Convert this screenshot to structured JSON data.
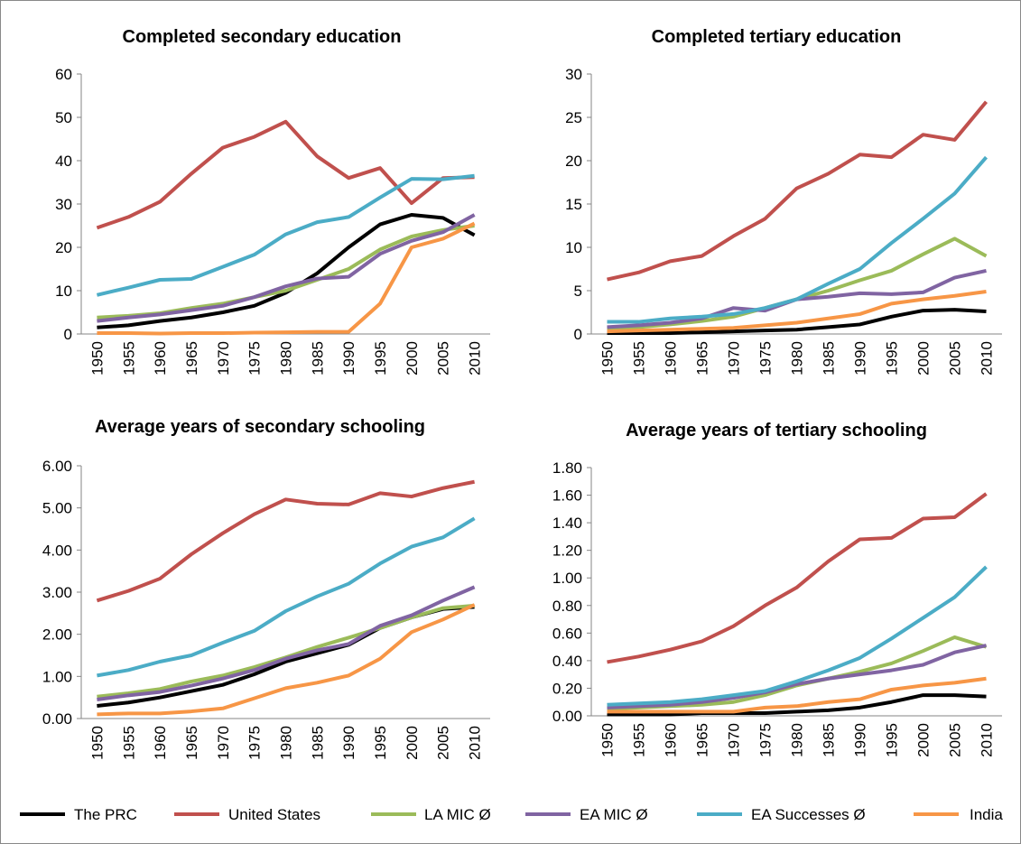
{
  "chart_data": [
    {
      "type": "line",
      "title": "Completed secondary education",
      "categories": [
        1950,
        1955,
        1960,
        1965,
        1970,
        1975,
        1980,
        1985,
        1990,
        1995,
        2000,
        2005,
        2010
      ],
      "ylim": [
        0,
        60
      ],
      "yticks": [
        0,
        10,
        20,
        30,
        40,
        50,
        60
      ],
      "series": [
        {
          "name": "The PRC",
          "color": "#000000",
          "values": [
            1.5,
            2,
            3,
            3.8,
            5,
            6.5,
            9.5,
            14,
            20,
            25.3,
            27.5,
            26.8,
            22.8
          ]
        },
        {
          "name": "United States",
          "color": "#c0504d",
          "values": [
            24.5,
            27,
            30.5,
            37,
            43,
            45.5,
            49,
            41,
            36,
            38.3,
            30.2,
            36,
            36.2
          ]
        },
        {
          "name": "LA MIC Ø",
          "color": "#9bbb59",
          "values": [
            3.8,
            4.2,
            4.8,
            6,
            7,
            8.5,
            10,
            12.5,
            15,
            19.5,
            22.5,
            24,
            25
          ]
        },
        {
          "name": "EA MIC Ø",
          "color": "#8064a2",
          "values": [
            3,
            3.8,
            4.5,
            5.5,
            6.5,
            8.5,
            11,
            12.8,
            13.2,
            18.5,
            21.5,
            23.5,
            27.5
          ]
        },
        {
          "name": "EA Successes Ø",
          "color": "#4bacc6",
          "values": [
            9,
            10.7,
            12.5,
            12.7,
            15.5,
            18.3,
            23,
            25.8,
            27,
            31.5,
            35.8,
            35.7,
            36.5
          ]
        },
        {
          "name": "India",
          "color": "#f79646",
          "values": [
            0.2,
            0.2,
            0.1,
            0.2,
            0.2,
            0.3,
            0.4,
            0.5,
            0.5,
            7,
            20,
            22,
            25.5
          ]
        }
      ]
    },
    {
      "type": "line",
      "title": "Completed tertiary education",
      "categories": [
        1950,
        1955,
        1960,
        1965,
        1970,
        1975,
        1980,
        1985,
        1990,
        1995,
        2000,
        2005,
        2010
      ],
      "ylim": [
        0,
        30
      ],
      "yticks": [
        0,
        5,
        10,
        15,
        20,
        25,
        30
      ],
      "series": [
        {
          "color": "#000000",
          "values": [
            0.1,
            0.1,
            0.1,
            0.2,
            0.3,
            0.4,
            0.5,
            0.8,
            1.1,
            2,
            2.7,
            2.8,
            2.6
          ]
        },
        {
          "color": "#c0504d",
          "values": [
            6.3,
            7.1,
            8.4,
            9,
            11.3,
            13.3,
            16.8,
            18.5,
            20.7,
            20.4,
            23,
            22.4,
            26.8
          ]
        },
        {
          "color": "#9bbb59",
          "values": [
            0.6,
            0.8,
            1.1,
            1.5,
            2,
            3,
            4,
            5,
            6.2,
            7.3,
            9.2,
            11,
            9
          ]
        },
        {
          "color": "#8064a2",
          "values": [
            0.8,
            1,
            1.3,
            1.8,
            3,
            2.7,
            4,
            4.3,
            4.7,
            4.6,
            4.8,
            6.5,
            7.3
          ]
        },
        {
          "color": "#4bacc6",
          "values": [
            1.4,
            1.4,
            1.8,
            2,
            2.3,
            3,
            4,
            5.8,
            7.5,
            10.5,
            13.3,
            16.2,
            20.4
          ]
        },
        {
          "color": "#f79646",
          "values": [
            0.3,
            0.4,
            0.5,
            0.6,
            0.7,
            1,
            1.3,
            1.8,
            2.3,
            3.5,
            4,
            4.4,
            4.9
          ]
        }
      ]
    },
    {
      "type": "line",
      "title": "Average years of secondary schooling",
      "categories": [
        1950,
        1955,
        1960,
        1965,
        1970,
        1975,
        1980,
        1985,
        1990,
        1995,
        2000,
        2005,
        2010
      ],
      "ylim": [
        0,
        6
      ],
      "yticks": [
        {
          "value": 0,
          "label": "0.00"
        },
        {
          "value": 1,
          "label": "1.00"
        },
        {
          "value": 2,
          "label": "2.00"
        },
        {
          "value": 3,
          "label": "3.00"
        },
        {
          "value": 4,
          "label": "4.00"
        },
        {
          "value": 5,
          "label": "5.00"
        },
        {
          "value": 6,
          "label": "6.00"
        }
      ],
      "series": [
        {
          "color": "#000000",
          "values": [
            0.3,
            0.38,
            0.5,
            0.65,
            0.8,
            1.05,
            1.35,
            1.55,
            1.75,
            2.15,
            2.4,
            2.6,
            2.65
          ]
        },
        {
          "color": "#c0504d",
          "values": [
            2.8,
            3.03,
            3.32,
            3.9,
            4.4,
            4.85,
            5.2,
            5.1,
            5.08,
            5.35,
            5.27,
            5.47,
            5.62
          ]
        },
        {
          "color": "#9bbb59",
          "values": [
            0.52,
            0.6,
            0.7,
            0.88,
            1.02,
            1.22,
            1.45,
            1.7,
            1.92,
            2.15,
            2.4,
            2.62,
            2.68
          ]
        },
        {
          "color": "#8064a2",
          "values": [
            0.45,
            0.55,
            0.63,
            0.78,
            0.95,
            1.15,
            1.42,
            1.62,
            1.77,
            2.2,
            2.45,
            2.8,
            3.12
          ]
        },
        {
          "color": "#4bacc6",
          "values": [
            1.02,
            1.15,
            1.35,
            1.5,
            1.8,
            2.08,
            2.55,
            2.9,
            3.2,
            3.68,
            4.08,
            4.3,
            4.75
          ]
        },
        {
          "color": "#f79646",
          "values": [
            0.1,
            0.12,
            0.12,
            0.17,
            0.24,
            0.48,
            0.72,
            0.85,
            1.02,
            1.42,
            2.05,
            2.35,
            2.7
          ]
        }
      ]
    },
    {
      "type": "line",
      "title": "Average years of tertiary schooling",
      "categories": [
        1950,
        1955,
        1960,
        1965,
        1970,
        1975,
        1980,
        1985,
        1990,
        1995,
        2000,
        2005,
        2010
      ],
      "ylim": [
        0,
        1.8
      ],
      "yticks": [
        {
          "value": 0,
          "label": "0.00"
        },
        {
          "value": 0.2,
          "label": "0.20"
        },
        {
          "value": 0.4,
          "label": "0.40"
        },
        {
          "value": 0.6,
          "label": "0.60"
        },
        {
          "value": 0.8,
          "label": "0.80"
        },
        {
          "value": 1,
          "label": "1.00"
        },
        {
          "value": 1.2,
          "label": "1.20"
        },
        {
          "value": 1.4,
          "label": "1.40"
        },
        {
          "value": 1.6,
          "label": "1.60"
        },
        {
          "value": 1.8,
          "label": "1.80"
        }
      ],
      "series": [
        {
          "color": "#000000",
          "values": [
            0.01,
            0.01,
            0.01,
            0.02,
            0.02,
            0.02,
            0.03,
            0.04,
            0.06,
            0.1,
            0.15,
            0.15,
            0.14
          ]
        },
        {
          "color": "#c0504d",
          "values": [
            0.39,
            0.43,
            0.48,
            0.54,
            0.65,
            0.8,
            0.93,
            1.12,
            1.28,
            1.29,
            1.43,
            1.44,
            1.61
          ]
        },
        {
          "color": "#9bbb59",
          "values": [
            0.05,
            0.06,
            0.07,
            0.08,
            0.1,
            0.15,
            0.22,
            0.27,
            0.32,
            0.38,
            0.47,
            0.57,
            0.5
          ]
        },
        {
          "color": "#8064a2",
          "values": [
            0.06,
            0.07,
            0.08,
            0.1,
            0.13,
            0.17,
            0.23,
            0.27,
            0.3,
            0.33,
            0.37,
            0.46,
            0.51
          ]
        },
        {
          "color": "#4bacc6",
          "values": [
            0.08,
            0.09,
            0.1,
            0.12,
            0.15,
            0.18,
            0.25,
            0.33,
            0.42,
            0.56,
            0.71,
            0.86,
            1.08
          ]
        },
        {
          "color": "#f79646",
          "values": [
            0.03,
            0.03,
            0.03,
            0.03,
            0.03,
            0.06,
            0.07,
            0.1,
            0.12,
            0.19,
            0.22,
            0.24,
            0.27
          ]
        }
      ]
    }
  ]
}
